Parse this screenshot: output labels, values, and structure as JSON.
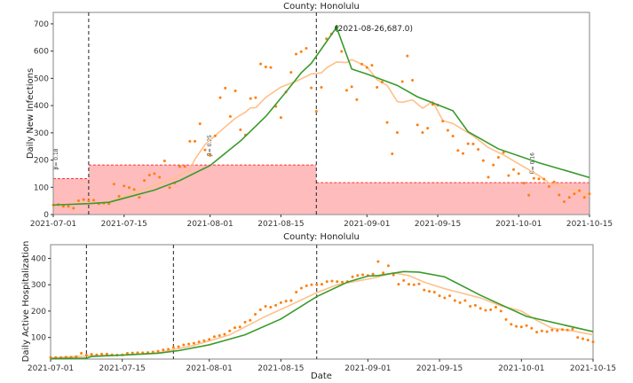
{
  "chart_data": [
    {
      "type": "line",
      "title": "County: Honolulu",
      "xlabel": "",
      "ylabel": "Daily New Infections",
      "xlim": [
        "2021-07-01",
        "2021-10-15"
      ],
      "ylim": [
        0,
        742
      ],
      "xticks": [
        "2021-07-01",
        "2021-07-15",
        "2021-08-01",
        "2021-08-15",
        "2021-09-01",
        "2021-09-15",
        "2021-10-01",
        "2021-10-15"
      ],
      "yticks": [
        0,
        100,
        200,
        300,
        400,
        500,
        600,
        700
      ],
      "grid": false,
      "start_date": "2021-07-01",
      "observed": [
        35,
        37,
        30,
        30,
        23,
        51,
        55,
        51,
        53,
        40,
        42,
        40,
        112,
        67,
        105,
        99,
        92,
        63,
        125,
        145,
        150,
        137,
        197,
        99,
        116,
        176,
        176,
        269,
        269,
        333,
        237,
        217,
        289,
        429,
        464,
        360,
        454,
        311,
        292,
        426,
        429,
        553,
        542,
        540,
        397,
        356,
        450,
        522,
        589,
        598,
        610,
        465,
        379,
        467,
        645,
        663,
        690,
        599,
        456,
        469,
        422,
        552,
        540,
        548,
        467,
        486,
        338,
        223,
        301,
        488,
        582,
        493,
        329,
        301,
        317,
        404,
        402,
        343,
        309,
        288,
        235,
        224,
        260,
        259,
        239,
        198,
        137,
        182,
        210,
        228,
        143,
        165,
        150,
        115,
        71,
        133,
        131,
        130,
        103,
        120,
        72,
        47,
        63,
        76,
        88,
        63,
        76
      ],
      "rolling_avg": {
        "x": [
          "2021-07-01",
          "2021-07-08",
          "2021-07-12",
          "2021-07-15",
          "2021-07-20",
          "2021-07-25",
          "2021-07-28",
          "2021-07-29",
          "2021-07-31",
          "2021-08-04",
          "2021-08-06",
          "2021-08-08",
          "2021-08-09",
          "2021-08-10",
          "2021-08-12",
          "2021-08-15",
          "2021-08-18",
          "2021-08-21",
          "2021-08-23",
          "2021-08-24",
          "2021-08-26",
          "2021-08-28",
          "2021-08-29",
          "2021-09-01",
          "2021-09-03",
          "2021-09-05",
          "2021-09-07",
          "2021-09-08",
          "2021-09-10",
          "2021-09-12",
          "2021-09-14",
          "2021-09-16",
          "2021-09-18",
          "2021-09-22",
          "2021-09-25",
          "2021-09-28",
          "2021-10-01",
          "2021-10-05",
          "2021-10-07",
          "2021-10-10",
          "2021-10-13",
          "2021-10-15"
        ],
        "y": [
          35,
          40,
          45,
          65,
          100,
          135,
          165,
          203,
          257,
          322,
          354,
          376,
          392,
          392,
          430,
          468,
          489,
          516,
          520,
          538,
          560,
          558,
          569,
          543,
          495,
          474,
          415,
          412,
          421,
          390,
          415,
          345,
          334,
          289,
          246,
          219,
          186,
          143,
          116,
          100,
          83,
          72
        ]
      },
      "model": {
        "x": [
          "2021-07-01",
          "2021-07-08",
          "2021-07-12",
          "2021-07-15",
          "2021-07-21",
          "2021-07-26",
          "2021-08-01",
          "2021-08-07",
          "2021-08-12",
          "2021-08-16",
          "2021-08-19",
          "2021-08-21",
          "2021-08-26",
          "2021-08-29",
          "2021-09-01",
          "2021-09-07",
          "2021-09-11",
          "2021-09-18",
          "2021-09-21",
          "2021-09-27",
          "2021-10-05",
          "2021-10-15"
        ],
        "y": [
          35,
          40,
          45,
          60,
          90,
          125,
          180,
          270,
          360,
          450,
          520,
          555,
          687,
          534,
          516,
          474,
          432,
          381,
          304,
          241,
          190,
          136
        ]
      },
      "peak_annotation": "(2021-08-26,687.0)",
      "peak": {
        "x": "2021-08-26",
        "y": 687
      },
      "change_points": [
        "2021-07-08",
        "2021-08-22"
      ],
      "beta_regions": [
        {
          "start": "2021-07-01",
          "end": "2021-07-08",
          "level": 132,
          "label": "β= 0.18"
        },
        {
          "start": "2021-07-08",
          "end": "2021-08-22",
          "level": 182,
          "label": "β= 0.25"
        },
        {
          "start": "2021-08-22",
          "end": "2021-10-15",
          "level": 117,
          "label": "β= 0.16"
        }
      ],
      "colors": {
        "observed": "#ff7f0e",
        "rolling_avg": "#ffc08a",
        "model": "#3a9a2c",
        "region_fill": "#ffbcbc",
        "region_line": "#ff3030"
      }
    },
    {
      "type": "line",
      "title": "County: Honolulu",
      "xlabel": "Date",
      "ylabel": "Daily Active Hospitalization",
      "xlim": [
        "2021-07-01",
        "2021-10-15"
      ],
      "ylim": [
        18,
        452
      ],
      "xticks": [
        "2021-07-01",
        "2021-07-15",
        "2021-08-01",
        "2021-08-15",
        "2021-09-01",
        "2021-09-15",
        "2021-10-01",
        "2021-10-15"
      ],
      "yticks": [
        100,
        200,
        300,
        400
      ],
      "grid": false,
      "start_date": "2021-07-01",
      "observed": [
        24,
        24,
        24,
        25,
        25,
        27,
        40,
        33,
        36,
        34,
        37,
        37,
        34,
        33,
        34,
        40,
        41,
        42,
        42,
        43,
        45,
        48,
        53,
        55,
        62,
        65,
        72,
        75,
        78,
        83,
        88,
        93,
        103,
        107,
        112,
        125,
        137,
        140,
        158,
        165,
        188,
        205,
        218,
        215,
        222,
        232,
        238,
        240,
        272,
        287,
        296,
        300,
        300,
        302,
        312,
        314,
        312,
        310,
        312,
        330,
        335,
        338,
        335,
        340,
        388,
        345,
        372,
        337,
        302,
        316,
        302,
        300,
        303,
        280,
        275,
        272,
        258,
        250,
        258,
        240,
        232,
        240,
        218,
        222,
        210,
        203,
        205,
        215,
        200,
        168,
        150,
        142,
        140,
        145,
        135,
        120,
        125,
        122,
        128,
        126,
        130,
        128,
        132,
        100,
        95,
        90,
        83
      ],
      "rolling_avg": {
        "x": [
          "2021-07-01",
          "2021-07-08",
          "2021-07-15",
          "2021-07-22",
          "2021-07-29",
          "2021-08-05",
          "2021-08-12",
          "2021-08-16",
          "2021-08-22",
          "2021-08-26",
          "2021-09-02",
          "2021-09-06",
          "2021-09-09",
          "2021-09-12",
          "2021-09-16",
          "2021-09-23",
          "2021-09-27",
          "2021-10-01",
          "2021-10-04",
          "2021-10-07",
          "2021-10-11",
          "2021-10-15"
        ],
        "y": [
          22,
          30,
          33,
          42,
          70,
          110,
          180,
          215,
          270,
          300,
          325,
          345,
          335,
          310,
          285,
          250,
          220,
          200,
          165,
          135,
          125,
          110
        ]
      },
      "model": {
        "x": [
          "2021-07-01",
          "2021-07-08",
          "2021-07-09",
          "2021-07-15",
          "2021-07-22",
          "2021-07-26",
          "2021-08-01",
          "2021-08-08",
          "2021-08-15",
          "2021-08-22",
          "2021-08-28",
          "2021-09-01",
          "2021-09-03",
          "2021-09-08",
          "2021-09-11",
          "2021-09-16",
          "2021-09-23",
          "2021-10-02",
          "2021-10-15"
        ],
        "y": [
          20,
          21,
          28,
          33,
          40,
          50,
          72,
          110,
          170,
          255,
          310,
          333,
          335,
          350,
          348,
          330,
          260,
          180,
          122
        ]
      },
      "change_points": [
        "2021-07-08",
        "2021-07-25",
        "2021-08-22"
      ],
      "colors": {
        "observed": "#ff7f0e",
        "rolling_avg": "#ffc08a",
        "model": "#3a9a2c"
      }
    }
  ]
}
